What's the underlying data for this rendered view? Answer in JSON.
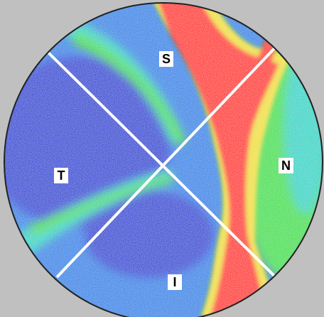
{
  "scan": {
    "colors": {
      "background": "#c0c0c0",
      "low": "#1a3fd6",
      "mid_low": "#1c86e8",
      "mid": "#14d6c8",
      "mid_high": "#38e04a",
      "high_edge": "#f0e020",
      "high": "#ff1a0a",
      "sector_lines": "#ffffff",
      "outline": "#222222"
    },
    "sectors": {
      "superior": "S",
      "temporal": "T",
      "nasal": "N",
      "inferior": "I"
    }
  }
}
